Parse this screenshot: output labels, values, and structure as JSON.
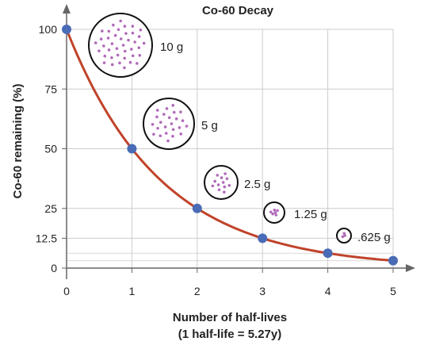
{
  "chart_data": {
    "type": "line",
    "title": "Co-60 Decay",
    "ylabel": "Co-60 remaining (%)",
    "xlabel_lines": [
      "Number of half-lives",
      "(1 half-life = 5.27y)"
    ],
    "x_ticks": [
      "0",
      "1",
      "2",
      "3",
      "4",
      "5"
    ],
    "y_ticks": [
      {
        "value": 0,
        "label": "0"
      },
      {
        "value": 12.5,
        "label": "12.5"
      },
      {
        "value": 25,
        "label": "25"
      },
      {
        "value": 50,
        "label": "50"
      },
      {
        "value": 75,
        "label": "75"
      },
      {
        "value": 100,
        "label": "100"
      }
    ],
    "minor_gridlines_y": [
      3.125,
      6.25
    ],
    "xlim": [
      0,
      5
    ],
    "ylim": [
      0,
      100
    ],
    "grid": true,
    "series": [
      {
        "x": [
          0,
          1,
          2,
          3,
          4,
          5
        ],
        "y": [
          100,
          50,
          25,
          12.5,
          6.25,
          3.125
        ],
        "line_color": "#c0432a",
        "marker_color": "#4a6bb5"
      }
    ],
    "annotations": [
      {
        "at_half_life": 0,
        "label": "10 g",
        "dot_count": 40
      },
      {
        "at_half_life": 1,
        "label": "5 g",
        "dot_count": 24
      },
      {
        "at_half_life": 2,
        "label": "2.5 g",
        "dot_count": 12
      },
      {
        "at_half_life": 3,
        "label": "1.25 g",
        "dot_count": 6
      },
      {
        "at_half_life": 4,
        "label": ".625 g",
        "dot_count": 3
      }
    ],
    "dot_color": "#b06bb8"
  }
}
